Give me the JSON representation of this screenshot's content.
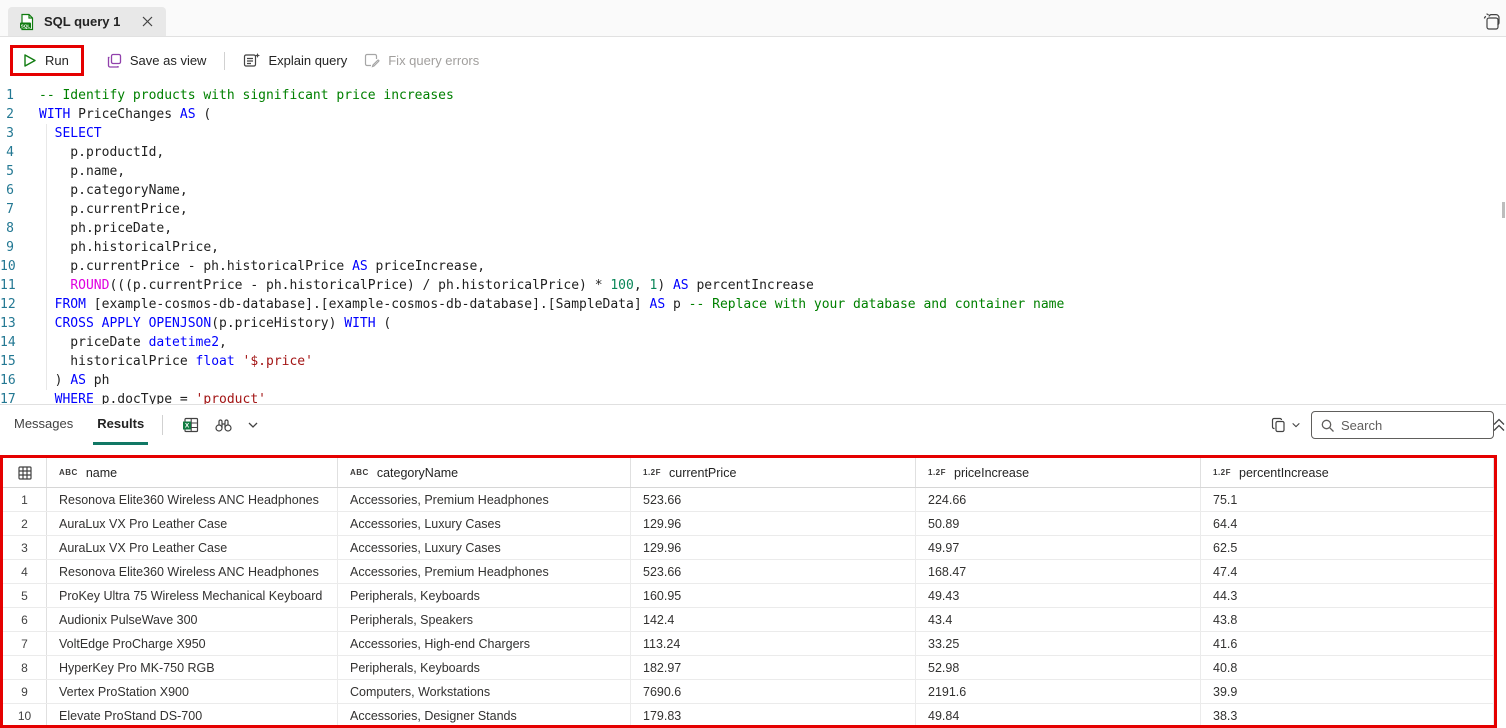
{
  "tab_bar": {
    "title": "SQL query 1"
  },
  "toolbar": {
    "run": "Run",
    "save_as_view": "Save as view",
    "explain_query": "Explain query",
    "fix_query_errors": "Fix query errors"
  },
  "editor": {
    "lines": [
      {
        "num": "1",
        "tokens": [
          [
            "comment",
            "-- Identify products with significant price increases"
          ]
        ]
      },
      {
        "num": "2",
        "tokens": [
          [
            "keyword",
            "WITH"
          ],
          [
            "plain",
            " PriceChanges "
          ],
          [
            "keyword",
            "AS"
          ],
          [
            "plain",
            " ("
          ]
        ]
      },
      {
        "num": "3",
        "tokens": [
          [
            "plain",
            "  "
          ],
          [
            "keyword",
            "SELECT"
          ]
        ]
      },
      {
        "num": "4",
        "tokens": [
          [
            "plain",
            "    p.productId,"
          ]
        ]
      },
      {
        "num": "5",
        "tokens": [
          [
            "plain",
            "    p.name,"
          ]
        ]
      },
      {
        "num": "6",
        "tokens": [
          [
            "plain",
            "    p.categoryName,"
          ]
        ]
      },
      {
        "num": "7",
        "tokens": [
          [
            "plain",
            "    p.currentPrice,"
          ]
        ]
      },
      {
        "num": "8",
        "tokens": [
          [
            "plain",
            "    ph.priceDate,"
          ]
        ]
      },
      {
        "num": "9",
        "tokens": [
          [
            "plain",
            "    ph.historicalPrice,"
          ]
        ]
      },
      {
        "num": "10",
        "tokens": [
          [
            "plain",
            "    p.currentPrice - ph.historicalPrice "
          ],
          [
            "keyword",
            "AS"
          ],
          [
            "plain",
            " priceIncrease,"
          ]
        ]
      },
      {
        "num": "11",
        "tokens": [
          [
            "plain",
            "    "
          ],
          [
            "func",
            "ROUND"
          ],
          [
            "plain",
            "(((p.currentPrice - ph.historicalPrice) / ph.historicalPrice) * "
          ],
          [
            "number",
            "100"
          ],
          [
            "plain",
            ", "
          ],
          [
            "number",
            "1"
          ],
          [
            "plain",
            ") "
          ],
          [
            "keyword",
            "AS"
          ],
          [
            "plain",
            " percentIncrease"
          ]
        ]
      },
      {
        "num": "12",
        "tokens": [
          [
            "plain",
            "  "
          ],
          [
            "keyword",
            "FROM"
          ],
          [
            "plain",
            " [example-cosmos-db-database].[example-cosmos-db-database].[SampleData] "
          ],
          [
            "keyword",
            "AS"
          ],
          [
            "plain",
            " p "
          ],
          [
            "comment",
            "-- Replace with your database and container name"
          ]
        ]
      },
      {
        "num": "13",
        "tokens": [
          [
            "plain",
            "  "
          ],
          [
            "keyword",
            "CROSS APPLY OPENJSON"
          ],
          [
            "plain",
            "(p.priceHistory) "
          ],
          [
            "keyword",
            "WITH"
          ],
          [
            "plain",
            " ("
          ]
        ]
      },
      {
        "num": "14",
        "tokens": [
          [
            "plain",
            "    priceDate "
          ],
          [
            "type",
            "datetime2"
          ],
          [
            "plain",
            ","
          ]
        ]
      },
      {
        "num": "15",
        "tokens": [
          [
            "plain",
            "    historicalPrice "
          ],
          [
            "type",
            "float"
          ],
          [
            "plain",
            " "
          ],
          [
            "string",
            "'$.price'"
          ]
        ]
      },
      {
        "num": "16",
        "tokens": [
          [
            "plain",
            "  ) "
          ],
          [
            "keyword",
            "AS"
          ],
          [
            "plain",
            " ph"
          ]
        ]
      },
      {
        "num": "17",
        "tokens": [
          [
            "plain",
            "  "
          ],
          [
            "keyword",
            "WHERE"
          ],
          [
            "plain",
            " p.docType = "
          ],
          [
            "string",
            "'product'"
          ]
        ]
      }
    ]
  },
  "panel": {
    "messages_tab": "Messages",
    "results_tab": "Results",
    "search_placeholder": "Search"
  },
  "table": {
    "columns": [
      {
        "type_badge": "ABC",
        "label": "name"
      },
      {
        "type_badge": "ABC",
        "label": "categoryName"
      },
      {
        "type_badge": "1.2F",
        "label": "currentPrice"
      },
      {
        "type_badge": "1.2F",
        "label": "priceIncrease"
      },
      {
        "type_badge": "1.2F",
        "label": "percentIncrease"
      }
    ],
    "rows": [
      {
        "num": "1",
        "cells": [
          "Resonova Elite360 Wireless ANC Headphones",
          "Accessories, Premium Headphones",
          "523.66",
          "224.66",
          "75.1"
        ]
      },
      {
        "num": "2",
        "cells": [
          "AuraLux VX Pro Leather Case",
          "Accessories, Luxury Cases",
          "129.96",
          "50.89",
          "64.4"
        ]
      },
      {
        "num": "3",
        "cells": [
          "AuraLux VX Pro Leather Case",
          "Accessories, Luxury Cases",
          "129.96",
          "49.97",
          "62.5"
        ]
      },
      {
        "num": "4",
        "cells": [
          "Resonova Elite360 Wireless ANC Headphones",
          "Accessories, Premium Headphones",
          "523.66",
          "168.47",
          "47.4"
        ]
      },
      {
        "num": "5",
        "cells": [
          "ProKey Ultra 75 Wireless Mechanical Keyboard",
          "Peripherals, Keyboards",
          "160.95",
          "49.43",
          "44.3"
        ]
      },
      {
        "num": "6",
        "cells": [
          "Audionix PulseWave 300",
          "Peripherals, Speakers",
          "142.4",
          "43.4",
          "43.8"
        ]
      },
      {
        "num": "7",
        "cells": [
          "VoltEdge ProCharge X950",
          "Accessories, High-end Chargers",
          "113.24",
          "33.25",
          "41.6"
        ]
      },
      {
        "num": "8",
        "cells": [
          "HyperKey Pro MK-750 RGB",
          "Peripherals, Keyboards",
          "182.97",
          "52.98",
          "40.8"
        ]
      },
      {
        "num": "9",
        "cells": [
          "Vertex ProStation X900",
          "Computers, Workstations",
          "7690.6",
          "2191.6",
          "39.9"
        ]
      },
      {
        "num": "10",
        "cells": [
          "Elevate ProStand DS-700",
          "Accessories, Designer Stands",
          "179.83",
          "49.84",
          "38.3"
        ]
      }
    ]
  },
  "colors": {
    "annotation_red": "#e50000",
    "accent_teal": "#117865",
    "run_green": "#107c10",
    "save_purple": "#9141ac",
    "excel_green": "#107c41",
    "keyword_blue": "#0000ff",
    "comment_green": "#008000",
    "string_red": "#a31515",
    "number_green": "#098658",
    "function_magenta": "#e000e0",
    "line_number_blue": "#237893"
  }
}
